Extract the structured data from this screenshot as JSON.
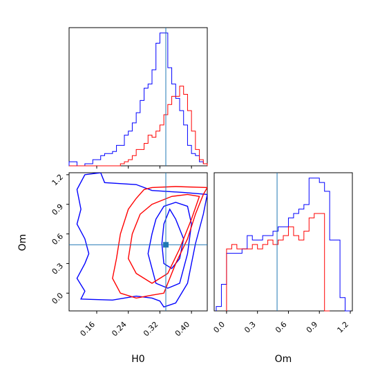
{
  "chart_data": {
    "type": "corner",
    "parameters": [
      "H0",
      "Om"
    ],
    "truth": {
      "H0": 0.335,
      "Om": 0.49
    },
    "colors": {
      "blue": "#0000ff",
      "red": "#ff0000",
      "truth_line": "#1f77b4"
    },
    "panels": [
      {
        "id": "H0-hist",
        "type": "histogram",
        "xlim": [
          0.09,
          0.44
        ],
        "x_ticks": [
          0.16,
          0.24,
          0.32,
          0.4
        ],
        "series": [
          {
            "color": "blue",
            "bin_edges": [
              0.09,
              0.1,
              0.11,
              0.12,
              0.13,
              0.14,
              0.15,
              0.16,
              0.17,
              0.18,
              0.19,
              0.2,
              0.21,
              0.22,
              0.23,
              0.24,
              0.25,
              0.26,
              0.27,
              0.28,
              0.29,
              0.3,
              0.31,
              0.32,
              0.33,
              0.34,
              0.35,
              0.36,
              0.37,
              0.38,
              0.39,
              0.4,
              0.41,
              0.42,
              0.43,
              0.44
            ],
            "counts": [
              2,
              2,
              0,
              0,
              1,
              1,
              3,
              3,
              5,
              6,
              6,
              7,
              10,
              10,
              15,
              17,
              21,
              26,
              32,
              38,
              40,
              47,
              60,
              65,
              65,
              48,
              40,
              33,
              27,
              20,
              10,
              6,
              5,
              2,
              1
            ]
          },
          {
            "color": "red",
            "bin_edges": [
              0.09,
              0.1,
              0.11,
              0.12,
              0.13,
              0.14,
              0.15,
              0.16,
              0.17,
              0.18,
              0.19,
              0.2,
              0.21,
              0.22,
              0.23,
              0.24,
              0.25,
              0.26,
              0.27,
              0.28,
              0.29,
              0.3,
              0.31,
              0.32,
              0.33,
              0.34,
              0.35,
              0.36,
              0.37,
              0.38,
              0.39,
              0.4,
              0.41,
              0.42,
              0.43,
              0.44
            ],
            "counts": [
              0,
              0,
              0,
              0,
              0,
              0,
              0,
              0,
              0,
              0,
              0,
              0,
              0,
              1,
              2,
              3,
              5,
              8,
              8,
              11,
              15,
              14,
              17,
              20,
              25,
              30,
              34,
              34,
              39,
              35,
              27,
              17,
              8,
              3,
              1
            ]
          }
        ]
      },
      {
        "id": "H0-Om-contour",
        "type": "contour",
        "xlim": [
          0.09,
          0.44
        ],
        "ylim": [
          -0.18,
          1.22
        ],
        "x_ticks": [
          0.16,
          0.24,
          0.32,
          0.4
        ],
        "y_ticks": [
          0.0,
          0.3,
          0.6,
          0.9,
          1.2
        ],
        "contours": [
          {
            "color": "blue",
            "points": [
              [
                0.12,
                -0.06
              ],
              [
                0.2,
                -0.07
              ],
              [
                0.26,
                -0.03
              ],
              [
                0.3,
                -0.05
              ],
              [
                0.32,
                -0.08
              ],
              [
                0.33,
                -0.14
              ],
              [
                0.36,
                -0.1
              ],
              [
                0.39,
                0.1
              ],
              [
                0.41,
                0.5
              ],
              [
                0.43,
                0.8
              ],
              [
                0.44,
                1.0
              ],
              [
                0.38,
                1.02
              ],
              [
                0.3,
                1.04
              ],
              [
                0.26,
                1.1
              ],
              [
                0.18,
                1.12
              ],
              [
                0.17,
                1.22
              ],
              [
                0.13,
                1.2
              ],
              [
                0.11,
                1.05
              ],
              [
                0.12,
                0.85
              ],
              [
                0.11,
                0.7
              ],
              [
                0.13,
                0.55
              ],
              [
                0.14,
                0.4
              ],
              [
                0.13,
                0.3
              ],
              [
                0.11,
                0.15
              ],
              [
                0.13,
                0.02
              ],
              [
                0.12,
                -0.06
              ]
            ]
          },
          {
            "color": "blue",
            "points": [
              [
                0.29,
                0.4
              ],
              [
                0.31,
                0.1
              ],
              [
                0.34,
                0.05
              ],
              [
                0.37,
                0.1
              ],
              [
                0.39,
                0.4
              ],
              [
                0.4,
                0.7
              ],
              [
                0.39,
                0.88
              ],
              [
                0.36,
                0.92
              ],
              [
                0.33,
                0.88
              ],
              [
                0.31,
                0.75
              ],
              [
                0.3,
                0.6
              ],
              [
                0.29,
                0.4
              ]
            ]
          },
          {
            "color": "blue",
            "points": [
              [
                0.33,
                0.3
              ],
              [
                0.35,
                0.25
              ],
              [
                0.37,
                0.35
              ],
              [
                0.38,
                0.55
              ],
              [
                0.36,
                0.75
              ],
              [
                0.345,
                0.85
              ],
              [
                0.33,
                0.7
              ],
              [
                0.325,
                0.5
              ],
              [
                0.33,
                0.3
              ]
            ]
          },
          {
            "color": "red",
            "points": [
              [
                0.22,
                0.0
              ],
              [
                0.26,
                -0.05
              ],
              [
                0.3,
                -0.02
              ],
              [
                0.33,
                0.0
              ],
              [
                0.36,
                0.3
              ],
              [
                0.39,
                0.55
              ],
              [
                0.41,
                0.8
              ],
              [
                0.43,
                1.0
              ],
              [
                0.44,
                1.07
              ],
              [
                0.36,
                1.08
              ],
              [
                0.3,
                1.07
              ],
              [
                0.28,
                1.05
              ],
              [
                0.26,
                0.96
              ],
              [
                0.24,
                0.85
              ],
              [
                0.22,
                0.6
              ],
              [
                0.21,
                0.35
              ],
              [
                0.2,
                0.15
              ],
              [
                0.22,
                0.0
              ]
            ]
          },
          {
            "color": "red",
            "points": [
              [
                0.24,
                0.35
              ],
              [
                0.26,
                0.2
              ],
              [
                0.3,
                0.1
              ],
              [
                0.34,
                0.2
              ],
              [
                0.37,
                0.45
              ],
              [
                0.4,
                0.75
              ],
              [
                0.42,
                0.98
              ],
              [
                0.39,
                1.0
              ],
              [
                0.35,
                0.98
              ],
              [
                0.3,
                0.9
              ],
              [
                0.27,
                0.8
              ],
              [
                0.25,
                0.6
              ],
              [
                0.24,
                0.35
              ]
            ]
          }
        ]
      },
      {
        "id": "Om-hist",
        "type": "histogram",
        "xlim": [
          -0.12,
          1.22
        ],
        "x_ticks": [
          0.0,
          0.3,
          0.6,
          0.9,
          1.2
        ],
        "series": [
          {
            "color": "blue",
            "bin_edges": [
              -0.1,
              -0.05,
              0.0,
              0.05,
              0.1,
              0.15,
              0.2,
              0.25,
              0.3,
              0.35,
              0.4,
              0.45,
              0.5,
              0.55,
              0.6,
              0.65,
              0.7,
              0.75,
              0.8,
              0.85,
              0.9,
              0.95,
              1.0,
              1.05,
              1.1,
              1.15,
              1.2
            ],
            "counts": [
              1,
              6,
              13,
              13,
              13,
              14,
              17,
              16,
              16,
              17,
              17,
              18,
              19,
              19,
              21,
              22,
              23,
              24,
              30,
              30,
              29,
              27,
              16,
              16,
              3,
              0
            ]
          },
          {
            "color": "red",
            "bin_edges": [
              0.0,
              0.05,
              0.1,
              0.15,
              0.2,
              0.25,
              0.3,
              0.35,
              0.4,
              0.45,
              0.5,
              0.55,
              0.6,
              0.65,
              0.7,
              0.75,
              0.8,
              0.85,
              0.9,
              0.95,
              1.0
            ],
            "counts": [
              14,
              15,
              14,
              14,
              14,
              15,
              14,
              15,
              16,
              15,
              16,
              17,
              19,
              17,
              16,
              18,
              21,
              22,
              22,
              0
            ]
          }
        ]
      }
    ],
    "xlabels": {
      "H0": "H0",
      "Om": "Om"
    },
    "ylabels": {
      "H0-Om": "Om"
    }
  }
}
